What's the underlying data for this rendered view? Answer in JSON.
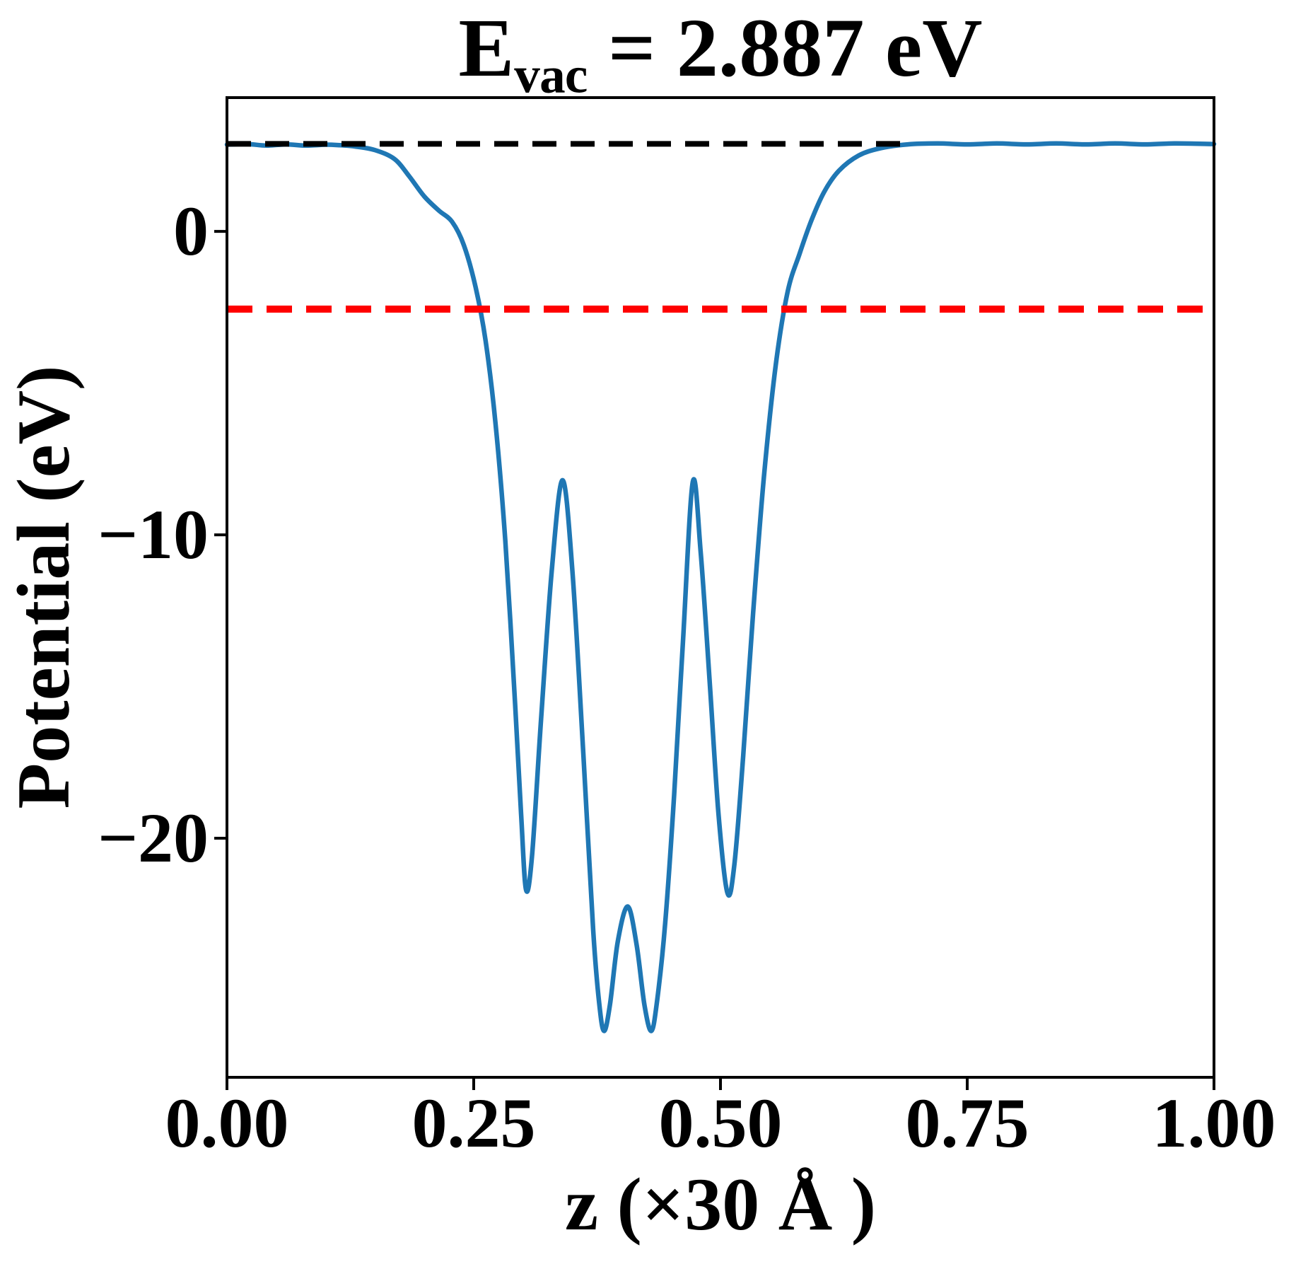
{
  "title_parts": {
    "main": "E",
    "sub": "vac",
    "rest": " = 2.887 eV"
  },
  "chart_data": {
    "type": "line",
    "title": "E_vac = 2.887 eV",
    "xlabel": "z (×30 Å )",
    "ylabel": "Potential (eV)",
    "xlim": [
      0.0,
      1.0
    ],
    "ylim": [
      -27.88,
      4.41
    ],
    "grid": false,
    "legend": "none",
    "xticks": {
      "values": [
        0.0,
        0.25,
        0.5,
        0.75,
        1.0
      ],
      "labels": [
        "0.00",
        "0.25",
        "0.50",
        "0.75",
        "1.00"
      ]
    },
    "yticks": {
      "values": [
        0,
        -10,
        -20
      ],
      "labels": [
        "0",
        "−10",
        "−20"
      ]
    },
    "series": [
      {
        "name": "planar-averaged-potential",
        "color": "#1f77b4",
        "width": 6.5,
        "points": [
          [
            0.0,
            2.86
          ],
          [
            0.02,
            2.88
          ],
          [
            0.04,
            2.83
          ],
          [
            0.06,
            2.87
          ],
          [
            0.08,
            2.83
          ],
          [
            0.1,
            2.86
          ],
          [
            0.115,
            2.84
          ],
          [
            0.13,
            2.8
          ],
          [
            0.15,
            2.68
          ],
          [
            0.17,
            2.38
          ],
          [
            0.185,
            1.8
          ],
          [
            0.2,
            1.15
          ],
          [
            0.215,
            0.68
          ],
          [
            0.228,
            0.32
          ],
          [
            0.24,
            -0.45
          ],
          [
            0.252,
            -1.85
          ],
          [
            0.262,
            -3.6
          ],
          [
            0.272,
            -6.3
          ],
          [
            0.282,
            -10.2
          ],
          [
            0.292,
            -15.6
          ],
          [
            0.298,
            -19.2
          ],
          [
            0.303,
            -21.7
          ],
          [
            0.309,
            -20.6
          ],
          [
            0.318,
            -16.2
          ],
          [
            0.329,
            -11.2
          ],
          [
            0.34,
            -8.2
          ],
          [
            0.35,
            -11.2
          ],
          [
            0.361,
            -17.2
          ],
          [
            0.371,
            -23.0
          ],
          [
            0.377,
            -25.4
          ],
          [
            0.382,
            -26.35
          ],
          [
            0.388,
            -25.5
          ],
          [
            0.396,
            -23.4
          ],
          [
            0.406,
            -22.25
          ],
          [
            0.415,
            -23.5
          ],
          [
            0.423,
            -25.5
          ],
          [
            0.43,
            -26.35
          ],
          [
            0.436,
            -25.3
          ],
          [
            0.444,
            -22.8
          ],
          [
            0.453,
            -18.6
          ],
          [
            0.462,
            -13.5
          ],
          [
            0.472,
            -8.25
          ],
          [
            0.48,
            -10.6
          ],
          [
            0.489,
            -14.8
          ],
          [
            0.498,
            -19.2
          ],
          [
            0.507,
            -21.8
          ],
          [
            0.514,
            -20.9
          ],
          [
            0.523,
            -17.3
          ],
          [
            0.533,
            -12.6
          ],
          [
            0.544,
            -8.1
          ],
          [
            0.556,
            -4.4
          ],
          [
            0.568,
            -2.0
          ],
          [
            0.58,
            -0.75
          ],
          [
            0.592,
            0.35
          ],
          [
            0.605,
            1.3
          ],
          [
            0.62,
            2.0
          ],
          [
            0.64,
            2.5
          ],
          [
            0.662,
            2.74
          ],
          [
            0.69,
            2.87
          ],
          [
            0.72,
            2.9
          ],
          [
            0.75,
            2.87
          ],
          [
            0.78,
            2.9
          ],
          [
            0.81,
            2.87
          ],
          [
            0.84,
            2.9
          ],
          [
            0.87,
            2.87
          ],
          [
            0.9,
            2.9
          ],
          [
            0.93,
            2.87
          ],
          [
            0.96,
            2.9
          ],
          [
            1.0,
            2.88
          ]
        ]
      }
    ],
    "reference_lines": [
      {
        "name": "vacuum-level-line",
        "value": 2.887,
        "x_start": 0.0,
        "x_end": 0.693,
        "color": "#000000",
        "style": "dashed",
        "dash": "34 20",
        "width": 8
      },
      {
        "name": "reference-level-line",
        "value": -2.56,
        "x_start": 0.0,
        "x_end": 1.0,
        "color": "#ff0000",
        "style": "dashed",
        "dash": "36 20",
        "width": 10
      }
    ],
    "axis_color": "#000000",
    "background": "#ffffff"
  }
}
